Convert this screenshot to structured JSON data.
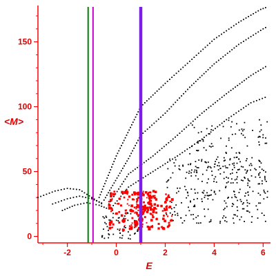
{
  "chart_data": {
    "type": "scatter",
    "title": "",
    "xlabel": "E",
    "ylabel": "<M>",
    "xlim": [
      -3.2,
      6.3
    ],
    "ylim": [
      -5,
      178
    ],
    "x_ticks": [
      -2,
      0,
      2,
      4,
      6
    ],
    "x_tick_labels": [
      "-2",
      "0",
      "2",
      "4",
      "6"
    ],
    "y_ticks": [
      0,
      50,
      100,
      150
    ],
    "y_tick_labels": [
      "0",
      "50",
      "100",
      "150"
    ],
    "grid": false,
    "legend": "none",
    "colors": {
      "axis": "#ff0000",
      "labels": "#e00000",
      "black_points": "#000000",
      "red_points": "#ff0000",
      "vline_green": "#008000",
      "vline_magenta": "#c000c0",
      "vline_purple": "#7b1fe6"
    },
    "vertical_lines": [
      {
        "x": -1.15,
        "color": "#008000"
      },
      {
        "x": -0.95,
        "color": "#c000c0"
      },
      {
        "x": 1.0,
        "color": "#7b1fe6",
        "heavy": true
      }
    ],
    "series": [
      {
        "kind": "curves",
        "color": "#000000",
        "curves": [
          {
            "x": [
              -0.7,
              0,
              1,
              2,
              3,
              4,
              5,
              5.9,
              6.2
            ],
            "y": [
              30,
              62,
              100,
              118,
              135,
              152,
              165,
              175,
              177
            ]
          },
          {
            "x": [
              -0.5,
              0.5,
              1,
              2,
              3,
              4,
              5,
              6,
              6.2
            ],
            "y": [
              28,
              60,
              78,
              95,
              115,
              133,
              148,
              160,
              162
            ]
          },
          {
            "x": [
              -0.3,
              0.5,
              1.5,
              2.5,
              3.5,
              4.5,
              5.5,
              6.2
            ],
            "y": [
              25,
              48,
              62,
              78,
              95,
              110,
              124,
              132
            ]
          },
          {
            "x": [
              -0.2,
              0.5,
              1.5,
              2.5,
              3.5,
              4.5,
              5.5,
              6.2
            ],
            "y": [
              22,
              38,
              50,
              62,
              75,
              90,
              103,
              108
            ]
          },
          {
            "x": [
              -3.2,
              -2.5,
              -2.0,
              -1.5,
              -1.0,
              -0.5
            ],
            "y": [
              30,
              35,
              37,
              36,
              30,
              24
            ]
          },
          {
            "x": [
              -2.6,
              -2.0,
              -1.5,
              -1.0,
              -0.5
            ],
            "y": [
              25,
              29,
              31,
              29,
              25
            ]
          },
          {
            "x": [
              -2.2,
              -1.7,
              -1.2,
              -0.7,
              -0.3
            ],
            "y": [
              20,
              24,
              26,
              24,
              21
            ]
          }
        ]
      },
      {
        "kind": "cloud",
        "color": "#000000",
        "regions": [
          {
            "x": [
              2.0,
              6.2
            ],
            "y": [
              10,
              60
            ],
            "n": 260
          },
          {
            "x": [
              3.0,
              6.2
            ],
            "y": [
              40,
              90
            ],
            "n": 120
          },
          {
            "x": [
              -0.6,
              1.0
            ],
            "y": [
              -2,
              20
            ],
            "n": 60
          }
        ]
      },
      {
        "kind": "cloud",
        "color": "#ff0000",
        "regions": [
          {
            "x": [
              -0.3,
              2.3
            ],
            "y": [
              5,
              35
            ],
            "n": 170
          },
          {
            "x": [
              0.8,
              1.6
            ],
            "y": [
              15,
              35
            ],
            "n": 40
          }
        ],
        "big_points": [
          {
            "x": 1.0,
            "y": 13,
            "r": 4
          },
          {
            "x": 1.05,
            "y": 18,
            "r": 3.5
          },
          {
            "x": 0.8,
            "y": 11,
            "r": 3
          },
          {
            "x": 1.15,
            "y": 22,
            "r": 3
          },
          {
            "x": 0.9,
            "y": 33,
            "r": 3
          },
          {
            "x": 0.3,
            "y": 12,
            "r": 3
          },
          {
            "x": 1.4,
            "y": 25,
            "r": 2.5
          },
          {
            "x": 0.6,
            "y": 20,
            "r": 2.5
          }
        ]
      }
    ]
  }
}
